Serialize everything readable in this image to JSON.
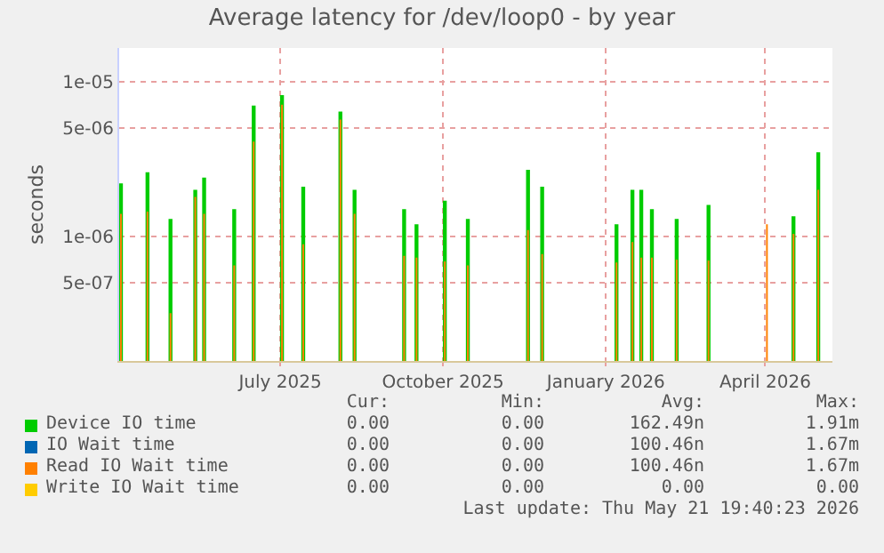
{
  "chart_data": {
    "type": "bar",
    "title": "Average latency for /dev/loop0 - by year",
    "ylabel": "seconds",
    "x": [
      "2025-04-02",
      "2025-04-17",
      "2025-04-30",
      "2025-05-14",
      "2025-05-19",
      "2025-06-05",
      "2025-06-16",
      "2025-07-02",
      "2025-07-14",
      "2025-08-04",
      "2025-08-12",
      "2025-09-09",
      "2025-09-16",
      "2025-10-02",
      "2025-10-15",
      "2025-11-18",
      "2025-11-26",
      "2026-01-07",
      "2026-01-16",
      "2026-01-21",
      "2026-01-27",
      "2026-02-10",
      "2026-02-28",
      "2026-04-02",
      "2026-04-17",
      "2026-05-01"
    ],
    "series": [
      {
        "name": "Device IO time",
        "color": "#00cc00",
        "values": [
          2.2e-06,
          2.6e-06,
          1.3e-06,
          2e-06,
          2.4e-06,
          1.5e-06,
          7e-06,
          8.2e-06,
          2.1e-06,
          6.4e-06,
          2e-06,
          1.5e-06,
          1.2e-06,
          1.7e-06,
          1.3e-06,
          2.7e-06,
          2.1e-06,
          1.2e-06,
          2e-06,
          2e-06,
          1.5e-06,
          1.3e-06,
          1.6e-06,
          null,
          1.35e-06,
          3.5e-06
        ]
      },
      {
        "name": "IO Wait time",
        "color": "#0066b3",
        "values": [
          null,
          null,
          null,
          null,
          null,
          null,
          null,
          null,
          null,
          null,
          null,
          null,
          null,
          null,
          null,
          null,
          null,
          null,
          null,
          null,
          null,
          null,
          null,
          null,
          null,
          null
        ]
      },
      {
        "name": "Read IO Wait time",
        "color": "#ff8000",
        "values": [
          1.4e-06,
          1.45e-06,
          3.2e-07,
          1.8e-06,
          1.4e-06,
          6.5e-07,
          4.1e-06,
          7.1e-06,
          8.9e-07,
          5.7e-06,
          1.4e-06,
          7.5e-07,
          7.3e-07,
          6.9e-07,
          6.5e-07,
          1.1e-06,
          7.7e-07,
          6.8e-07,
          9.2e-07,
          7.3e-07,
          7.3e-07,
          7.1e-07,
          7e-07,
          1.2e-06,
          1.04e-06,
          2e-06
        ]
      },
      {
        "name": "Write IO Wait time",
        "color": "#ffcc00",
        "values": [
          null,
          null,
          null,
          null,
          null,
          null,
          null,
          null,
          null,
          null,
          null,
          null,
          null,
          null,
          null,
          null,
          null,
          null,
          null,
          null,
          null,
          null,
          null,
          null,
          null,
          null
        ]
      }
    ],
    "log": "y",
    "ylim": [
      1.57e-07,
      1.65e-05
    ],
    "yticks": [
      {
        "value": 1e-05,
        "label": "1e-05"
      },
      {
        "value": 5e-06,
        "label": "5e-06"
      },
      {
        "value": 1e-06,
        "label": "1e-06"
      },
      {
        "value": 5e-07,
        "label": "5e-07"
      }
    ],
    "xlim": [
      "2025-04-01",
      "2026-05-09"
    ],
    "xticks": [
      {
        "value": "2025-07-01",
        "label": "July 2025"
      },
      {
        "value": "2025-10-01",
        "label": "October 2025"
      },
      {
        "value": "2026-01-01",
        "label": "January 2026"
      },
      {
        "value": "2026-04-01",
        "label": "April 2026"
      }
    ],
    "grid": true,
    "legend": "bottom",
    "annotations": [
      "Cur:",
      "Min:",
      "Avg:",
      "Max:",
      "0.00",
      "0.00",
      "162.49n",
      "1.91m",
      "0.00",
      "0.00",
      "100.46n",
      "1.67m",
      "0.00",
      "0.00",
      "100.46n",
      "1.67m",
      "0.00",
      "0.00",
      "0.00",
      "0.00",
      "Last update: Thu May 21 19:40:23 2026"
    ]
  }
}
